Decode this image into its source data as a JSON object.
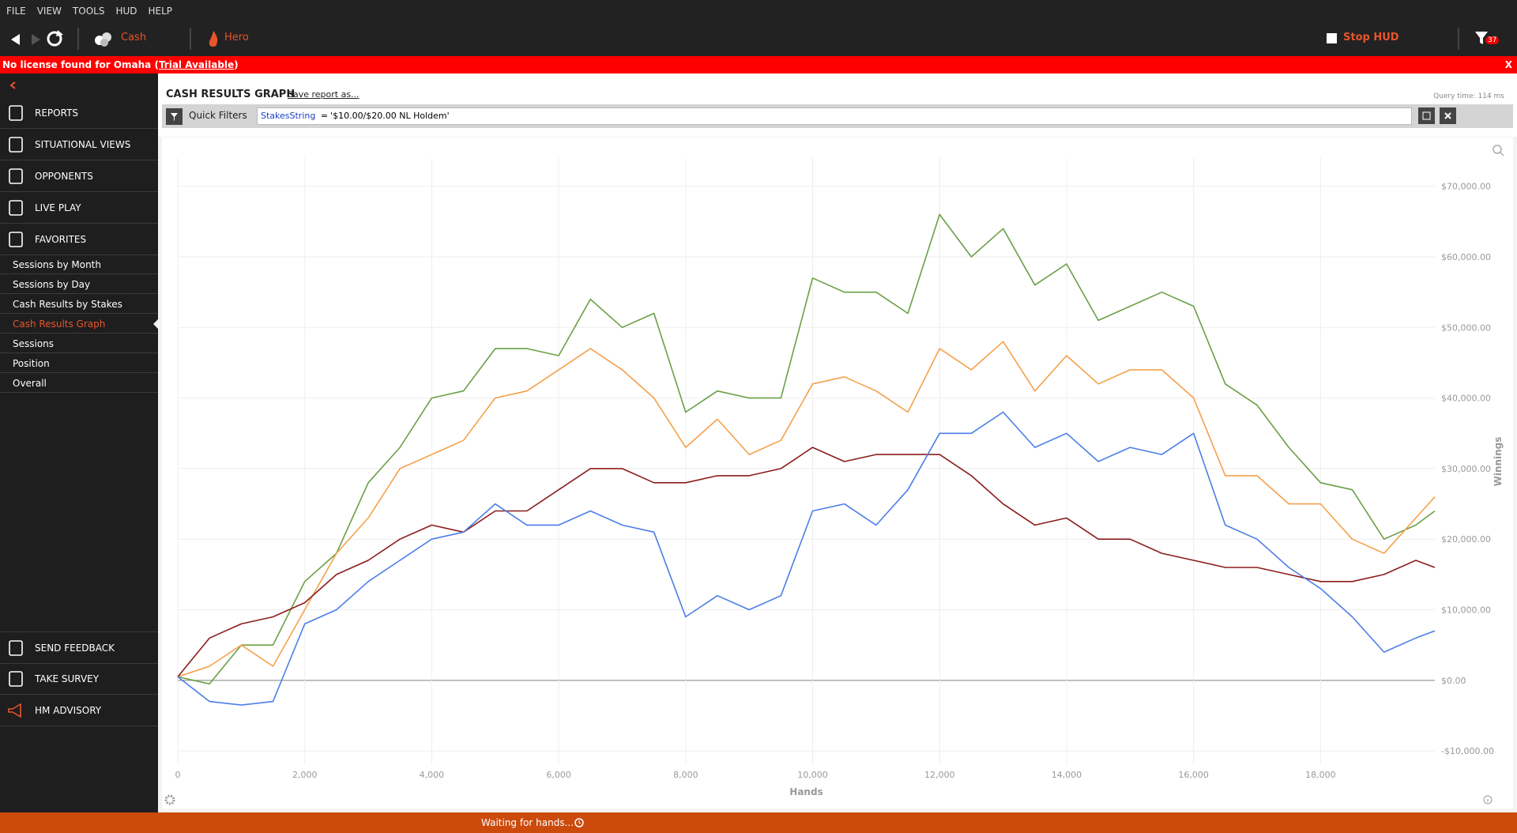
{
  "menu": [
    "FILE",
    "VIEW",
    "TOOLS",
    "HUD",
    "HELP"
  ],
  "toolbar": {
    "cash": "Cash",
    "hero": "Hero",
    "stop_hud": "Stop HUD",
    "filter_count": "37"
  },
  "banner": {
    "prefix": "No license found for Omaha (",
    "link": "Trial Available",
    "suffix": ")",
    "close": "X"
  },
  "sidebar": {
    "nav": [
      "REPORTS",
      "SITUATIONAL VIEWS",
      "OPPONENTS",
      "LIVE PLAY",
      "FAVORITES"
    ],
    "favorites": [
      "Sessions by Month",
      "Sessions by Day",
      "Cash Results by Stakes",
      "Cash Results Graph",
      "Sessions",
      "Position",
      "Overall"
    ],
    "active_favorite": 3,
    "footer": [
      "SEND FEEDBACK",
      "TAKE SURVEY",
      "HM ADVISORY"
    ]
  },
  "report": {
    "title": "CASH RESULTS GRAPH",
    "save": "Save report as...",
    "query_time": "Query time: 114 ms",
    "quick_filters": "Quick Filters",
    "filter_field": "StakesString",
    "filter_op": "=",
    "filter_value": "'$10.00/$20.00 NL Holdem'"
  },
  "status": "Waiting for hands...",
  "chart_data": {
    "type": "line",
    "x_label": "Hands",
    "y_label": "Winnings",
    "x": [
      0,
      500,
      1000,
      1500,
      2000,
      2500,
      3000,
      3500,
      4000,
      4500,
      5000,
      5500,
      6000,
      6500,
      7000,
      7500,
      8000,
      8500,
      9000,
      9500,
      10000,
      10500,
      11000,
      11500,
      12000,
      12500,
      13000,
      13500,
      14000,
      14500,
      15000,
      15500,
      16000,
      16500,
      17000,
      17500,
      18000,
      18500,
      19000,
      19500,
      19800
    ],
    "series": [
      {
        "color": "#6a9f45",
        "values": [
          500,
          -500,
          5000,
          5000,
          14000,
          18000,
          28000,
          33000,
          40000,
          41000,
          47000,
          47000,
          46000,
          54000,
          50000,
          52000,
          38000,
          41000,
          40000,
          40000,
          57000,
          55000,
          55000,
          52000,
          66000,
          60000,
          64000,
          56000,
          59000,
          51000,
          53000,
          55000,
          53000,
          42000,
          39000,
          33000,
          28000,
          27000,
          20000,
          22000,
          24000
        ]
      },
      {
        "color": "#f5a04a",
        "values": [
          500,
          2000,
          5000,
          2000,
          10000,
          18000,
          23000,
          30000,
          32000,
          34000,
          40000,
          41000,
          44000,
          47000,
          44000,
          40000,
          33000,
          37000,
          32000,
          34000,
          42000,
          43000,
          41000,
          38000,
          47000,
          44000,
          48000,
          41000,
          46000,
          42000,
          44000,
          44000,
          40000,
          29000,
          29000,
          25000,
          25000,
          20000,
          18000,
          23000,
          26000
        ]
      },
      {
        "color": "#8b1c1c",
        "values": [
          500,
          6000,
          8000,
          9000,
          11000,
          15000,
          17000,
          20000,
          22000,
          21000,
          24000,
          24000,
          27000,
          30000,
          30000,
          28000,
          28000,
          29000,
          29000,
          30000,
          33000,
          31000,
          32000,
          32000,
          32000,
          29000,
          25000,
          22000,
          23000,
          20000,
          20000,
          18000,
          17000,
          16000,
          16000,
          15000,
          14000,
          14000,
          15000,
          17000,
          16000
        ]
      },
      {
        "color": "#4c7ee8",
        "values": [
          500,
          -3000,
          -3500,
          -3000,
          8000,
          10000,
          14000,
          17000,
          20000,
          21000,
          25000,
          22000,
          22000,
          24000,
          22000,
          21000,
          9000,
          12000,
          10000,
          12000,
          24000,
          25000,
          22000,
          27000,
          35000,
          35000,
          38000,
          33000,
          35000,
          31000,
          33000,
          32000,
          35000,
          22000,
          20000,
          16000,
          13000,
          9000,
          4000,
          6000,
          7000
        ]
      }
    ],
    "xlim": [
      0,
      19800
    ],
    "ylim": [
      -12000,
      74000
    ],
    "xticks": [
      0,
      {
        "value": 2000,
        "label": "2,000"
      },
      {
        "value": 4000,
        "label": "4,000"
      },
      {
        "value": 6000,
        "label": "6,000"
      },
      {
        "value": 8000,
        "label": "8,000"
      },
      {
        "value": 10000,
        "label": "10,000"
      },
      {
        "value": 12000,
        "label": "12,000"
      },
      {
        "value": 14000,
        "label": "14,000"
      },
      {
        "value": 16000,
        "label": "16,000"
      },
      {
        "value": 18000,
        "label": "18,000"
      }
    ],
    "yticks": [
      {
        "value": -10000,
        "label": "-$10,000.00"
      },
      {
        "value": 0,
        "label": "$0.00"
      },
      {
        "value": 10000,
        "label": "$10,000.00"
      },
      {
        "value": 20000,
        "label": "$20,000.00"
      },
      {
        "value": 30000,
        "label": "$30,000.00"
      },
      {
        "value": 40000,
        "label": "$40,000.00"
      },
      {
        "value": 50000,
        "label": "$50,000.00"
      },
      {
        "value": 60000,
        "label": "$60,000.00"
      },
      {
        "value": 70000,
        "label": "$70,000.00"
      }
    ],
    "grid": true
  }
}
